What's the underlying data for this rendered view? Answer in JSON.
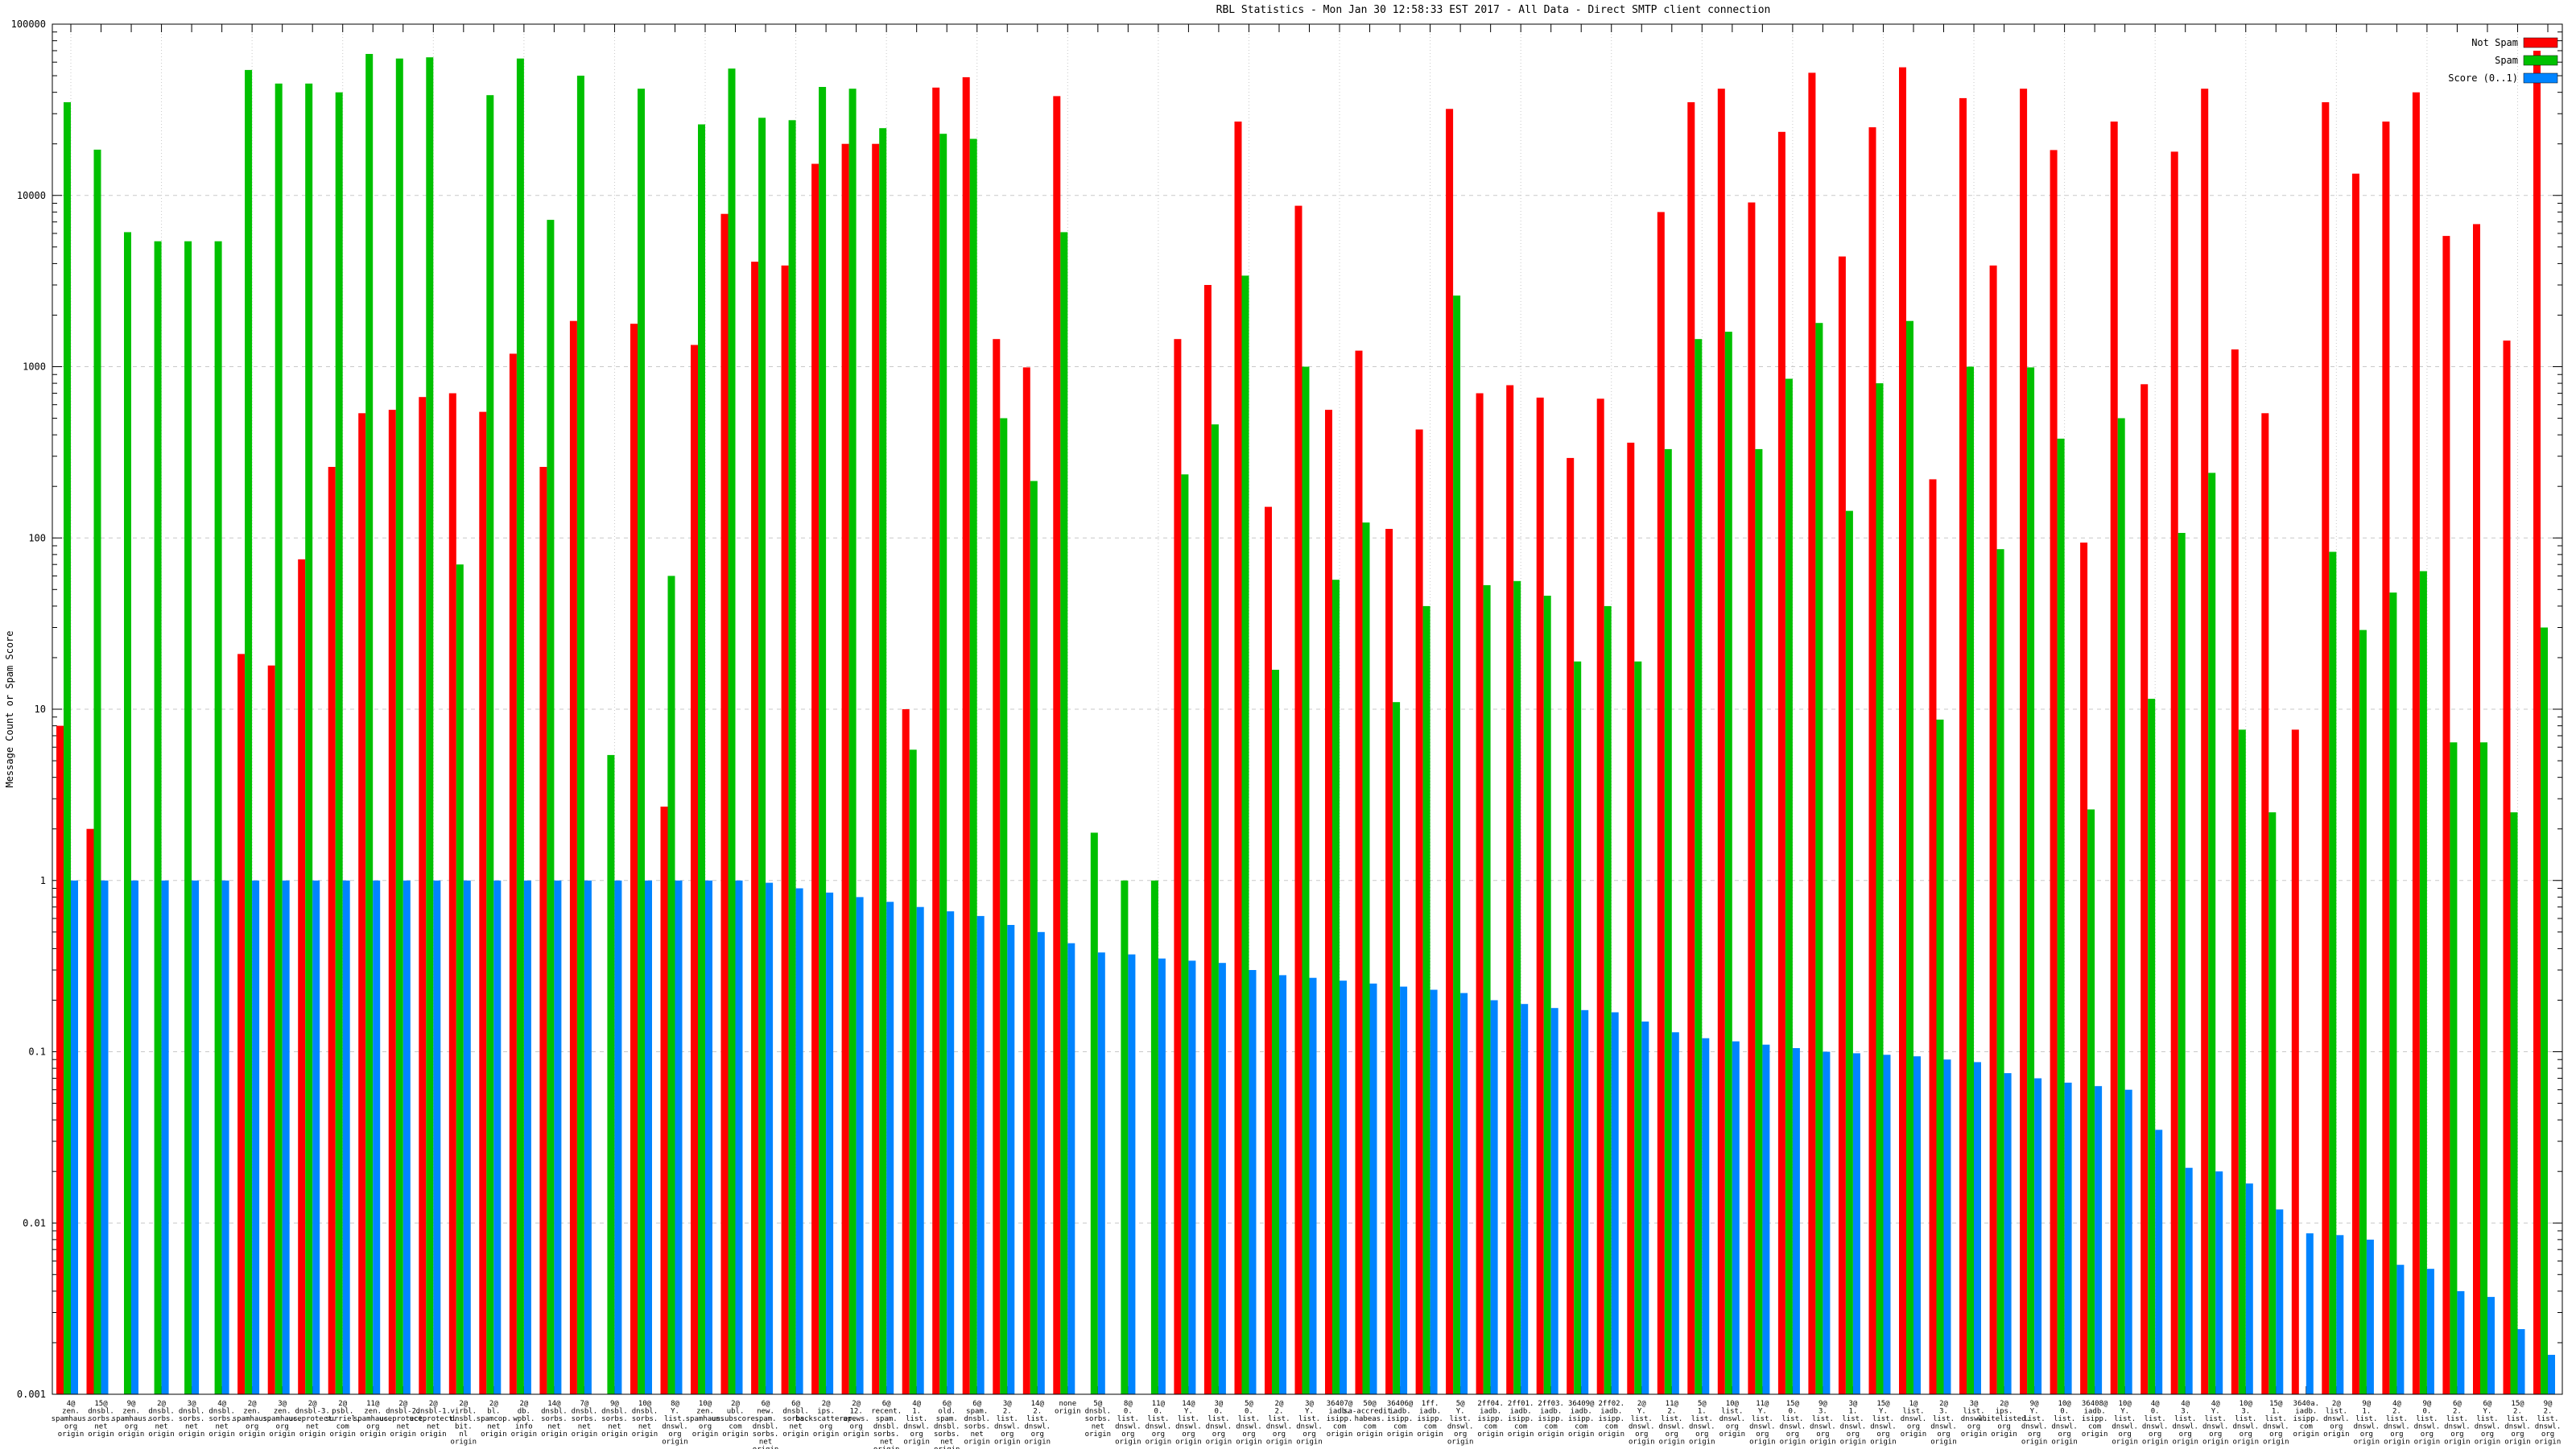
{
  "header": {
    "title": "RBL Statistics - Mon Jan 30 12:58:33 EST 2017 - All Data - Direct SMTP client connection"
  },
  "legend": [
    {
      "label": "Not Spam",
      "color": "#ff0000"
    },
    {
      "label": "Spam",
      "color": "#00c000"
    },
    {
      "label": "Score (0..1)",
      "color": "#0084ff"
    }
  ],
  "colors": {
    "not_spam": "#ff0000",
    "spam": "#00c000",
    "score": "#0084ff",
    "grid": "#c8c8c8",
    "border": "#000000"
  },
  "chart_data": {
    "type": "bar",
    "title": "RBL Statistics - Mon Jan 30 12:58:33 EST 2017 - All Data - Direct SMTP client connection",
    "xlabel": "",
    "ylabel": "Message Count or Spam Score",
    "y_scale": "log",
    "ylim": [
      0.001,
      100000
    ],
    "y_ticks": [
      "100000",
      "10000",
      "1000",
      "100",
      "10",
      "1",
      "0.1",
      "0.01",
      "0.001"
    ],
    "grid": "on",
    "legend_position": "top-right",
    "categories": [
      "4@|zen.|spamhaus.|org|origin",
      "15@|dnsbl.|sorbs.|net|origin",
      "9@|zen.|spamhaus.|org|origin",
      "2@|dnsbl.|sorbs.|net|origin",
      "3@|dnsbl.|sorbs.|net|origin",
      "4@|dnsbl.|sorbs.|net|origin",
      "2@|zen.|spamhaus.|org|origin",
      "3@|zen.|spamhaus.|org|origin",
      "2@|dnsbl-3.|uceprotect.|net|origin",
      "2@|psbl.|surriel.|com|origin",
      "11@|zen.|spamhaus.|org|origin",
      "2@|dnsbl-2.|uceprotect.|net|origin",
      "2@|dnsbl-1.|uceprotect.|net|origin",
      "2@|virbl.|dnsbl.|bit.|nl|origin",
      "2@|bl.|spamcop.|net|origin",
      "2@|db.|wpbl.|info|origin",
      "14@|dnsbl.|sorbs.|net|origin",
      "7@|dnsbl.|sorbs.|net|origin",
      "9@|dnsbl.|sorbs.|net|origin",
      "10@|dnsbl.|sorbs.|net|origin",
      "8@|Y.|list.|dnswl.|org|origin",
      "10@|zen.|spamhaus.|org|origin",
      "2@|ubl.|unsubscore.|com|origin",
      "6@|new.|spam.|dnsbl.|sorbs.|net|origin",
      "6@|dnsbl.|sorbs.|net|origin",
      "2@|ips.|backscatterer.|org|origin",
      "2@|12.|apews.|org|origin",
      "6@|recent.|spam.|dnsbl.|sorbs.|net|origin",
      "4@|1.|list.|dnswl.|org|origin",
      "6@|old.|spam.|dnsbl.|sorbs.|net|origin",
      "6@|spam.|dnsbl.|sorbs.|net|origin",
      "3@|2.|list.|dnswl.|org|origin",
      "14@|2.|list.|dnswl.|org|origin",
      "none|origin",
      "5@|dnsbl.|sorbs.|net|origin",
      "8@|0.|list.|dnswl.|org|origin",
      "11@|0.|list.|dnswl.|org|origin",
      "14@|Y.|list.|dnswl.|org|origin",
      "3@|0.|list.|dnswl.|org|origin",
      "5@|0.|list.|dnswl.|org|origin",
      "2@|2.|list.|dnswl.|org|origin",
      "3@|Y.|list.|dnswl.|org|origin",
      "36407@|iadb.|isipp.|com|origin",
      "50@|sa-accredit.|habeas.|com|origin",
      "36406@|iadb.|isipp.|com|origin",
      "1ff.|iadb.|isipp.|com|origin",
      "5@|Y.|list.|dnswl.|org|origin",
      "2ff04.|iadb.|isipp.|com|origin",
      "2ff01.|iadb.|isipp.|com|origin",
      "2ff03.|iadb.|isipp.|com|origin",
      "36409@|iadb.|isipp.|com|origin",
      "2ff02.|iadb.|isipp.|com|origin",
      "2@|Y.|list.|dnswl.|org|origin",
      "11@|2.|list.|dnswl.|org|origin",
      "5@|1.|list.|dnswl.|org|origin",
      "10@|list.|dnswl.|org|origin",
      "11@|Y.|list.|dnswl.|org|origin",
      "15@|0.|list.|dnswl.|org|origin",
      "9@|3.|list.|dnswl.|org|origin",
      "3@|1.|list.|dnswl.|org|origin",
      "15@|Y.|list.|dnswl.|org|origin",
      "1@|list.|dnswl.|org|origin",
      "2@|3.|list.|dnswl.|org|origin",
      "3@|list.|dnswl.|org|origin",
      "2@|ips.|whitelisted.|org|origin",
      "9@|Y.|list.|dnswl.|org|origin",
      "10@|0.|list.|dnswl.|org|origin",
      "36408@|iadb.|isipp.|com|origin",
      "10@|Y.|list.|dnswl.|org|origin",
      "4@|0.|list.|dnswl.|org|origin",
      "4@|3.|list.|dnswl.|org|origin",
      "4@|Y.|list.|dnswl.|org|origin",
      "10@|3.|list.|dnswl.|org|origin",
      "15@|1.|list.|dnswl.|org|origin",
      "3640a.|iadb.|isipp.|com|origin",
      "2@|list.|dnswl.|org|origin",
      "9@|1.|list.|dnswl.|org|origin",
      "4@|2.|list.|dnswl.|org|origin",
      "9@|0.|list.|dnswl.|org|origin",
      "6@|2.|list.|dnswl.|org|origin",
      "6@|Y.|list.|dnswl.|org|origin",
      "15@|2.|list.|dnswl.|org|origin",
      "9@|2.|list.|dnswl.|org|origin"
    ],
    "series": [
      {
        "name": "Not Spam",
        "color": "#ff0000",
        "values": [
          8,
          2,
          0,
          0,
          0,
          0,
          21,
          18,
          75,
          260,
          535,
          560,
          665,
          700,
          545,
          1190,
          260,
          1850,
          0,
          1780,
          2.7,
          1340,
          7800,
          4100,
          3900,
          15300,
          20000,
          20000,
          10,
          42600,
          49000,
          1450,
          990,
          38000,
          0,
          0,
          0,
          1450,
          3000,
          27000,
          152,
          8700,
          560,
          1240,
          113,
          430,
          32000,
          700,
          780,
          660,
          293,
          650,
          360,
          8000,
          35000,
          42000,
          9100,
          23500,
          52000,
          4400,
          25000,
          56000,
          220,
          37000,
          3900,
          42000,
          18400,
          94,
          27000,
          790,
          18000,
          42000,
          1260,
          535,
          7.6,
          35000,
          13400,
          27000,
          40000,
          5800,
          6800,
          1420,
          70000
        ]
      },
      {
        "name": "Spam",
        "color": "#00c000",
        "values": [
          35000,
          18500,
          6100,
          5400,
          5400,
          5400,
          54000,
          45000,
          45000,
          40000,
          67000,
          63000,
          64000,
          70,
          38500,
          63000,
          7200,
          50000,
          5.4,
          42000,
          60,
          26000,
          55000,
          28400,
          27500,
          43000,
          42000,
          24700,
          5.8,
          22900,
          21400,
          500,
          215,
          6100,
          1.9,
          1.0,
          1.0,
          235,
          460,
          3400,
          17,
          1000,
          57,
          123,
          11,
          40,
          2600,
          53,
          56,
          46,
          19,
          40,
          19,
          330,
          1450,
          1600,
          330,
          850,
          1800,
          144,
          800,
          1850,
          8.7,
          1000,
          86,
          990,
          380,
          2.6,
          500,
          11.5,
          107,
          240,
          7.6,
          2.5,
          0,
          83,
          29,
          48,
          64,
          6.4,
          6.4,
          2.5,
          30
        ]
      },
      {
        "name": "Score (0..1)",
        "color": "#0084ff",
        "values": [
          1,
          1,
          1,
          1,
          1,
          1,
          1,
          1,
          1,
          1,
          1,
          1,
          1,
          1,
          1,
          1,
          1,
          1,
          1,
          1,
          1,
          1,
          1,
          0.97,
          0.9,
          0.85,
          0.8,
          0.75,
          0.7,
          0.66,
          0.62,
          0.55,
          0.5,
          0.43,
          0.38,
          0.37,
          0.35,
          0.34,
          0.33,
          0.3,
          0.28,
          0.27,
          0.26,
          0.25,
          0.24,
          0.23,
          0.22,
          0.2,
          0.19,
          0.18,
          0.175,
          0.17,
          0.15,
          0.13,
          0.12,
          0.115,
          0.11,
          0.105,
          0.1,
          0.098,
          0.096,
          0.094,
          0.09,
          0.087,
          0.075,
          0.07,
          0.066,
          0.063,
          0.06,
          0.035,
          0.021,
          0.02,
          0.017,
          0.012,
          0.0087,
          0.0085,
          0.008,
          0.0057,
          0.0054,
          0.004,
          0.0037,
          0.0024,
          0.0017
        ]
      }
    ]
  }
}
